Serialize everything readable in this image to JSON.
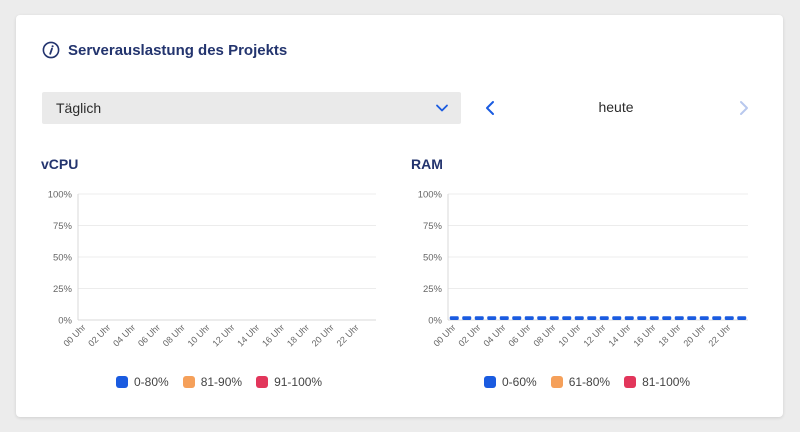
{
  "header": {
    "title": "Serverauslastung des Projekts",
    "icon": "info-icon"
  },
  "controls": {
    "period_select": {
      "value": "Täglich"
    },
    "nav_label": "heute"
  },
  "colors": {
    "blue": "#1a5be0",
    "orange": "#f5a05a",
    "red": "#e2365b",
    "title": "#23346e"
  },
  "chart_data": [
    {
      "type": "bar",
      "title": "vCPU",
      "categories": [
        "00 Uhr",
        "01 Uhr",
        "02 Uhr",
        "03 Uhr",
        "04 Uhr",
        "05 Uhr",
        "06 Uhr",
        "07 Uhr",
        "08 Uhr",
        "09 Uhr",
        "10 Uhr",
        "11 Uhr",
        "12 Uhr",
        "13 Uhr",
        "14 Uhr",
        "15 Uhr",
        "16 Uhr",
        "17 Uhr",
        "18 Uhr",
        "19 Uhr",
        "20 Uhr",
        "21 Uhr",
        "22 Uhr",
        "23 Uhr"
      ],
      "tick_labels": [
        "00 Uhr",
        "02 Uhr",
        "04 Uhr",
        "06 Uhr",
        "08 Uhr",
        "10 Uhr",
        "12 Uhr",
        "14 Uhr",
        "16 Uhr",
        "18 Uhr",
        "20 Uhr",
        "22 Uhr"
      ],
      "y_ticks": [
        "0%",
        "25%",
        "50%",
        "75%",
        "100%"
      ],
      "ylim": [
        0,
        100
      ],
      "grid": true,
      "legend_position": "bottom",
      "series": [
        {
          "name": "0-80%",
          "color": "#1a5be0",
          "values": [
            0,
            0,
            0,
            0,
            0,
            0,
            0,
            0,
            0,
            0,
            0,
            0,
            0,
            0,
            0,
            0,
            0,
            0,
            0,
            0,
            0,
            0,
            0,
            0
          ]
        },
        {
          "name": "81-90%",
          "color": "#f5a05a",
          "values": [
            0,
            0,
            0,
            0,
            0,
            0,
            0,
            0,
            0,
            0,
            0,
            0,
            0,
            0,
            0,
            0,
            0,
            0,
            0,
            0,
            0,
            0,
            0,
            0
          ]
        },
        {
          "name": "91-100%",
          "color": "#e2365b",
          "values": [
            0,
            0,
            0,
            0,
            0,
            0,
            0,
            0,
            0,
            0,
            0,
            0,
            0,
            0,
            0,
            0,
            0,
            0,
            0,
            0,
            0,
            0,
            0,
            0
          ]
        }
      ]
    },
    {
      "type": "bar",
      "title": "RAM",
      "categories": [
        "00 Uhr",
        "01 Uhr",
        "02 Uhr",
        "03 Uhr",
        "04 Uhr",
        "05 Uhr",
        "06 Uhr",
        "07 Uhr",
        "08 Uhr",
        "09 Uhr",
        "10 Uhr",
        "11 Uhr",
        "12 Uhr",
        "13 Uhr",
        "14 Uhr",
        "15 Uhr",
        "16 Uhr",
        "17 Uhr",
        "18 Uhr",
        "19 Uhr",
        "20 Uhr",
        "21 Uhr",
        "22 Uhr",
        "23 Uhr"
      ],
      "tick_labels": [
        "00 Uhr",
        "02 Uhr",
        "04 Uhr",
        "06 Uhr",
        "08 Uhr",
        "10 Uhr",
        "12 Uhr",
        "14 Uhr",
        "16 Uhr",
        "18 Uhr",
        "20 Uhr",
        "22 Uhr"
      ],
      "y_ticks": [
        "0%",
        "25%",
        "50%",
        "75%",
        "100%"
      ],
      "ylim": [
        0,
        100
      ],
      "grid": true,
      "legend_position": "bottom",
      "series": [
        {
          "name": "0-60%",
          "color": "#1a5be0",
          "values": [
            3,
            3,
            3,
            3,
            3,
            3,
            3,
            3,
            3,
            3,
            3,
            3,
            3,
            3,
            3,
            3,
            3,
            3,
            3,
            3,
            3,
            3,
            3,
            3
          ]
        },
        {
          "name": "61-80%",
          "color": "#f5a05a",
          "values": [
            0,
            0,
            0,
            0,
            0,
            0,
            0,
            0,
            0,
            0,
            0,
            0,
            0,
            0,
            0,
            0,
            0,
            0,
            0,
            0,
            0,
            0,
            0,
            0
          ]
        },
        {
          "name": "81-100%",
          "color": "#e2365b",
          "values": [
            0,
            0,
            0,
            0,
            0,
            0,
            0,
            0,
            0,
            0,
            0,
            0,
            0,
            0,
            0,
            0,
            0,
            0,
            0,
            0,
            0,
            0,
            0,
            0
          ]
        }
      ]
    }
  ]
}
